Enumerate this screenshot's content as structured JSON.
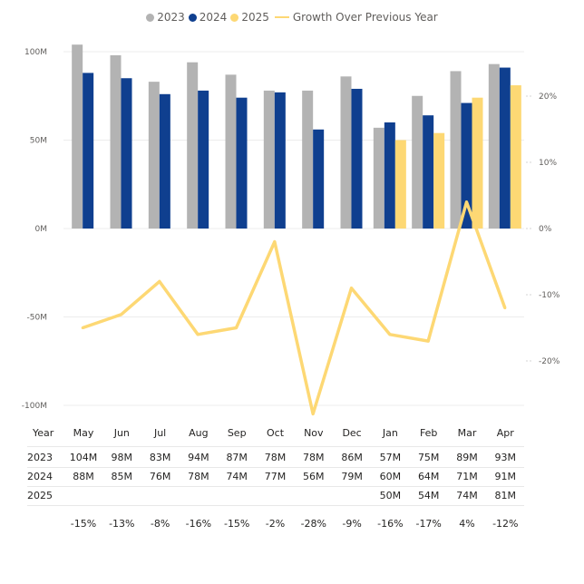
{
  "chart_data": {
    "type": "bar",
    "categories": [
      "May",
      "Jun",
      "Jul",
      "Aug",
      "Sep",
      "Oct",
      "Nov",
      "Dec",
      "Jan",
      "Feb",
      "Mar",
      "Apr"
    ],
    "series": [
      {
        "name": "2023",
        "color": "#b3b3b3",
        "values": [
          104,
          98,
          83,
          94,
          87,
          78,
          78,
          86,
          57,
          75,
          89,
          93
        ]
      },
      {
        "name": "2024",
        "color": "#0f3f8f",
        "values": [
          88,
          85,
          76,
          78,
          74,
          77,
          56,
          79,
          60,
          64,
          71,
          91
        ]
      },
      {
        "name": "2025",
        "color": "#fdd874",
        "values": [
          null,
          null,
          null,
          null,
          null,
          null,
          null,
          null,
          50,
          54,
          74,
          81
        ]
      }
    ],
    "line_series": {
      "name": "Growth Over Previous Year",
      "color": "#fdd874",
      "axis": "right",
      "values": [
        -15,
        -13,
        -8,
        -16,
        -15,
        -2,
        -28,
        -9,
        -16,
        -17,
        4,
        -12
      ]
    },
    "left_axis": {
      "ticks": [
        "100M",
        "50M",
        "0M",
        "-50M",
        "-100M"
      ],
      "min": -100,
      "max": 100,
      "unit": "M"
    },
    "right_axis": {
      "ticks": [
        "20%",
        "10%",
        "0%",
        "-10%",
        "-20%"
      ],
      "min": -27.8,
      "max": 27.8
    },
    "legend_position": "top-center",
    "gridlines": true
  },
  "table": {
    "header": [
      "Year",
      "May",
      "Jun",
      "Jul",
      "Aug",
      "Sep",
      "Oct",
      "Nov",
      "Dec",
      "Jan",
      "Feb",
      "Mar",
      "Apr"
    ],
    "rows": [
      [
        "2023",
        "104M",
        "98M",
        "83M",
        "94M",
        "87M",
        "78M",
        "78M",
        "86M",
        "57M",
        "75M",
        "89M",
        "93M"
      ],
      [
        "2024",
        "88M",
        "85M",
        "76M",
        "78M",
        "74M",
        "77M",
        "56M",
        "79M",
        "60M",
        "64M",
        "71M",
        "91M"
      ],
      [
        "2025",
        "",
        "",
        "",
        "",
        "",
        "",
        "",
        "",
        "50M",
        "54M",
        "74M",
        "81M"
      ],
      [
        "",
        "-15%",
        "-13%",
        "-8%",
        "-16%",
        "-15%",
        "-2%",
        "-28%",
        "-9%",
        "-16%",
        "-17%",
        "4%",
        "-12%"
      ]
    ]
  }
}
